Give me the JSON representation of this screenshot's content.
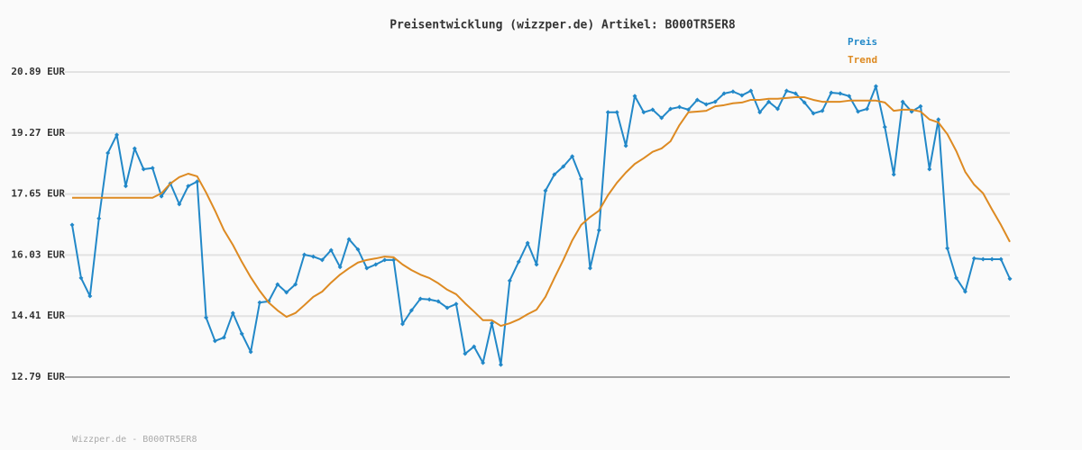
{
  "chart_data": {
    "type": "line",
    "title": "Preisentwicklung (wizzper.de) Artikel: B000TR5ER8",
    "source": "Wizzper.de - B000TR5ER8",
    "ylim": [
      12.79,
      20.89
    ],
    "yticks": [
      {
        "value": 12.79,
        "label": "12.79 EUR"
      },
      {
        "value": 14.41,
        "label": "14.41 EUR"
      },
      {
        "value": 16.03,
        "label": "16.03 EUR"
      },
      {
        "value": 17.65,
        "label": "17.65 EUR"
      },
      {
        "value": 19.27,
        "label": "19.27 EUR"
      },
      {
        "value": 20.89,
        "label": "20.89 EUR"
      }
    ],
    "grid": true,
    "legend": "top-right",
    "series": [
      {
        "name": "Preis",
        "color": "#2288c8",
        "markers": true,
        "values": [
          16.83,
          15.42,
          14.94,
          17.0,
          18.74,
          19.22,
          17.86,
          18.86,
          18.31,
          18.34,
          17.59,
          17.93,
          17.38,
          17.86,
          17.98,
          14.37,
          13.75,
          13.84,
          14.49,
          13.94,
          13.46,
          14.77,
          14.8,
          15.25,
          15.04,
          15.25,
          16.04,
          15.99,
          15.9,
          16.16,
          15.71,
          16.45,
          16.18,
          15.68,
          15.78,
          15.9,
          15.9,
          14.2,
          14.56,
          14.87,
          14.85,
          14.8,
          14.63,
          14.73,
          13.41,
          13.6,
          13.17,
          14.22,
          13.12,
          15.35,
          15.85,
          16.35,
          15.78,
          17.74,
          18.17,
          18.38,
          18.65,
          18.05,
          15.68,
          16.69,
          19.82,
          19.82,
          18.93,
          20.25,
          19.82,
          19.89,
          19.67,
          19.91,
          19.96,
          19.89,
          20.15,
          20.03,
          20.1,
          20.32,
          20.37,
          20.27,
          20.39,
          19.82,
          20.1,
          19.91,
          20.39,
          20.32,
          20.08,
          19.79,
          19.86,
          20.34,
          20.32,
          20.25,
          19.84,
          19.91,
          20.51,
          19.43,
          18.17,
          20.1,
          19.84,
          19.98,
          18.31,
          19.63,
          16.21,
          15.42,
          15.06,
          15.94,
          15.92,
          15.92,
          15.92,
          15.4
        ]
      },
      {
        "name": "Trend",
        "color": "#dd8a22",
        "markers": false,
        "values": [
          17.55,
          17.55,
          17.55,
          17.55,
          17.55,
          17.55,
          17.55,
          17.55,
          17.55,
          17.55,
          17.67,
          17.93,
          18.1,
          18.19,
          18.12,
          17.69,
          17.21,
          16.69,
          16.3,
          15.85,
          15.44,
          15.08,
          14.77,
          14.56,
          14.39,
          14.49,
          14.7,
          14.92,
          15.06,
          15.3,
          15.51,
          15.68,
          15.83,
          15.9,
          15.94,
          15.99,
          15.97,
          15.78,
          15.63,
          15.51,
          15.42,
          15.28,
          15.11,
          14.99,
          14.75,
          14.53,
          14.3,
          14.3,
          14.15,
          14.22,
          14.32,
          14.46,
          14.58,
          14.92,
          15.42,
          15.9,
          16.42,
          16.83,
          17.04,
          17.21,
          17.62,
          17.95,
          18.22,
          18.45,
          18.6,
          18.77,
          18.86,
          19.05,
          19.48,
          19.82,
          19.84,
          19.86,
          19.98,
          20.01,
          20.06,
          20.08,
          20.15,
          20.15,
          20.18,
          20.18,
          20.2,
          20.22,
          20.22,
          20.15,
          20.1,
          20.1,
          20.1,
          20.13,
          20.13,
          20.13,
          20.13,
          20.08,
          19.86,
          19.89,
          19.89,
          19.84,
          19.63,
          19.55,
          19.24,
          18.79,
          18.24,
          17.9,
          17.67,
          17.24,
          16.83,
          16.38
        ]
      }
    ]
  }
}
